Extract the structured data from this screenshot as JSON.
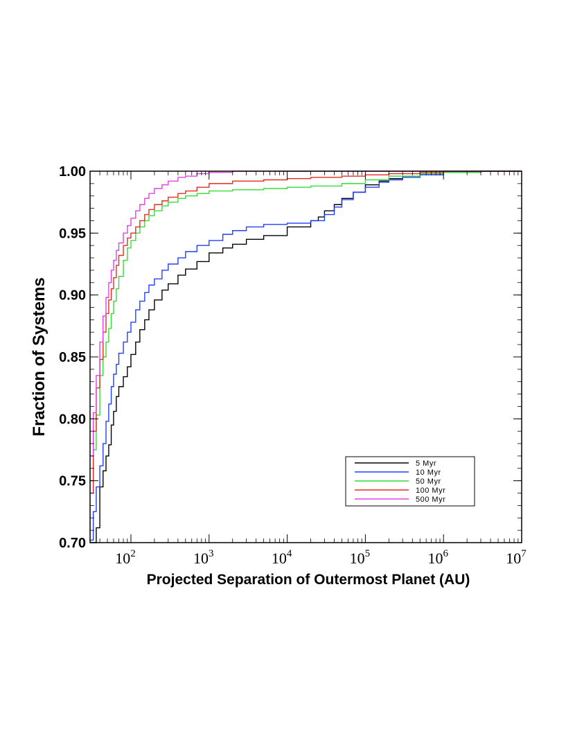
{
  "chart_data": {
    "type": "line",
    "title": "",
    "xlabel": "Projected Separation of Outermost Planet (AU)",
    "ylabel": "Fraction of Systems",
    "x_scale": "log",
    "xlim": [
      30,
      10000000
    ],
    "ylim": [
      0.7,
      1.0
    ],
    "x_tick_values": [
      100,
      1000,
      10000,
      100000,
      1000000,
      10000000
    ],
    "x_tick_labels": [
      {
        "base": "10",
        "exp": "2"
      },
      {
        "base": "10",
        "exp": "3"
      },
      {
        "base": "10",
        "exp": "4"
      },
      {
        "base": "10",
        "exp": "5"
      },
      {
        "base": "10",
        "exp": "6"
      },
      {
        "base": "10",
        "exp": "7"
      }
    ],
    "y_tick_values": [
      0.7,
      0.75,
      0.8,
      0.85,
      0.9,
      0.95,
      1.0
    ],
    "y_tick_labels": [
      "0.70",
      "0.75",
      "0.80",
      "0.85",
      "0.90",
      "0.95",
      "1.00"
    ],
    "grid": false,
    "legend_position": "bottom-right",
    "series": [
      {
        "name": "5 Myr",
        "color": "#000000",
        "x": [
          30,
          33,
          36,
          40,
          44,
          48,
          52,
          56,
          60,
          65,
          70,
          80,
          90,
          100,
          115,
          130,
          150,
          170,
          200,
          250,
          300,
          400,
          500,
          700,
          1000,
          1500,
          2000,
          3000,
          5000,
          10000,
          20000,
          25000,
          30000,
          40000,
          50000,
          70000,
          100000,
          150000,
          200000,
          300000,
          500000,
          1000000,
          3000000,
          10000000
        ],
        "y": [
          0.69,
          0.7,
          0.712,
          0.745,
          0.758,
          0.77,
          0.779,
          0.795,
          0.806,
          0.818,
          0.826,
          0.834,
          0.842,
          0.852,
          0.862,
          0.872,
          0.88,
          0.888,
          0.896,
          0.904,
          0.909,
          0.916,
          0.921,
          0.927,
          0.934,
          0.938,
          0.941,
          0.945,
          0.948,
          0.955,
          0.96,
          0.963,
          0.968,
          0.973,
          0.978,
          0.983,
          0.989,
          0.992,
          0.994,
          0.996,
          0.997,
          0.999,
          1.0,
          1.0
        ]
      },
      {
        "name": "10 Myr",
        "color": "#1f3fff",
        "x": [
          30,
          33,
          36,
          40,
          44,
          48,
          52,
          56,
          60,
          65,
          70,
          80,
          90,
          100,
          115,
          130,
          150,
          170,
          200,
          250,
          300,
          400,
          500,
          700,
          1000,
          1500,
          2000,
          3000,
          5000,
          10000,
          20000,
          30000,
          40000,
          50000,
          70000,
          100000,
          150000,
          200000,
          300000,
          500000,
          1000000,
          3000000,
          10000000
        ],
        "y": [
          0.702,
          0.725,
          0.745,
          0.762,
          0.78,
          0.798,
          0.812,
          0.826,
          0.836,
          0.844,
          0.853,
          0.862,
          0.87,
          0.878,
          0.888,
          0.895,
          0.902,
          0.908,
          0.913,
          0.92,
          0.925,
          0.93,
          0.935,
          0.94,
          0.944,
          0.949,
          0.952,
          0.955,
          0.957,
          0.958,
          0.96,
          0.965,
          0.971,
          0.977,
          0.983,
          0.987,
          0.991,
          0.993,
          0.995,
          0.997,
          0.999,
          1.0,
          1.0
        ]
      },
      {
        "name": "50 Myr",
        "color": "#33dd33",
        "x": [
          30,
          33,
          36,
          40,
          44,
          48,
          52,
          56,
          60,
          65,
          70,
          80,
          90,
          100,
          115,
          130,
          150,
          170,
          200,
          250,
          300,
          400,
          500,
          700,
          1000,
          2000,
          5000,
          10000,
          20000,
          50000,
          100000,
          200000,
          500000,
          1000000,
          3000000,
          10000000
        ],
        "y": [
          0.75,
          0.775,
          0.803,
          0.835,
          0.85,
          0.862,
          0.873,
          0.885,
          0.895,
          0.905,
          0.915,
          0.928,
          0.938,
          0.944,
          0.95,
          0.955,
          0.96,
          0.964,
          0.968,
          0.972,
          0.975,
          0.978,
          0.98,
          0.982,
          0.984,
          0.985,
          0.986,
          0.987,
          0.988,
          0.99,
          0.993,
          0.996,
          0.998,
          0.999,
          1.0,
          1.0
        ]
      },
      {
        "name": "100 Myr",
        "color": "#e52b1f",
        "x": [
          30,
          33,
          36,
          40,
          44,
          48,
          52,
          56,
          60,
          65,
          70,
          80,
          90,
          100,
          115,
          130,
          150,
          170,
          200,
          250,
          300,
          400,
          500,
          700,
          1000,
          2000,
          5000,
          10000,
          20000,
          50000,
          100000,
          200000,
          500000,
          1000000,
          3000000,
          10000000
        ],
        "y": [
          0.74,
          0.79,
          0.825,
          0.848,
          0.87,
          0.885,
          0.896,
          0.905,
          0.914,
          0.924,
          0.932,
          0.94,
          0.946,
          0.95,
          0.955,
          0.96,
          0.965,
          0.969,
          0.973,
          0.976,
          0.979,
          0.982,
          0.984,
          0.987,
          0.99,
          0.992,
          0.993,
          0.994,
          0.995,
          0.996,
          0.997,
          0.998,
          0.999,
          1.0,
          1.0,
          1.0
        ]
      },
      {
        "name": "500 Myr",
        "color": "#e040e8",
        "x": [
          30,
          33,
          36,
          40,
          44,
          48,
          52,
          56,
          60,
          65,
          70,
          80,
          90,
          100,
          115,
          130,
          150,
          170,
          200,
          250,
          300,
          400,
          500,
          700,
          1000,
          2000,
          5000,
          10000,
          100000,
          1000000,
          10000000
        ],
        "y": [
          0.77,
          0.805,
          0.835,
          0.862,
          0.883,
          0.898,
          0.91,
          0.92,
          0.928,
          0.936,
          0.942,
          0.95,
          0.956,
          0.962,
          0.968,
          0.973,
          0.978,
          0.982,
          0.986,
          0.989,
          0.992,
          0.995,
          0.996,
          0.998,
          0.999,
          1.0,
          1.0,
          1.0,
          1.0,
          1.0,
          1.0
        ]
      }
    ]
  }
}
